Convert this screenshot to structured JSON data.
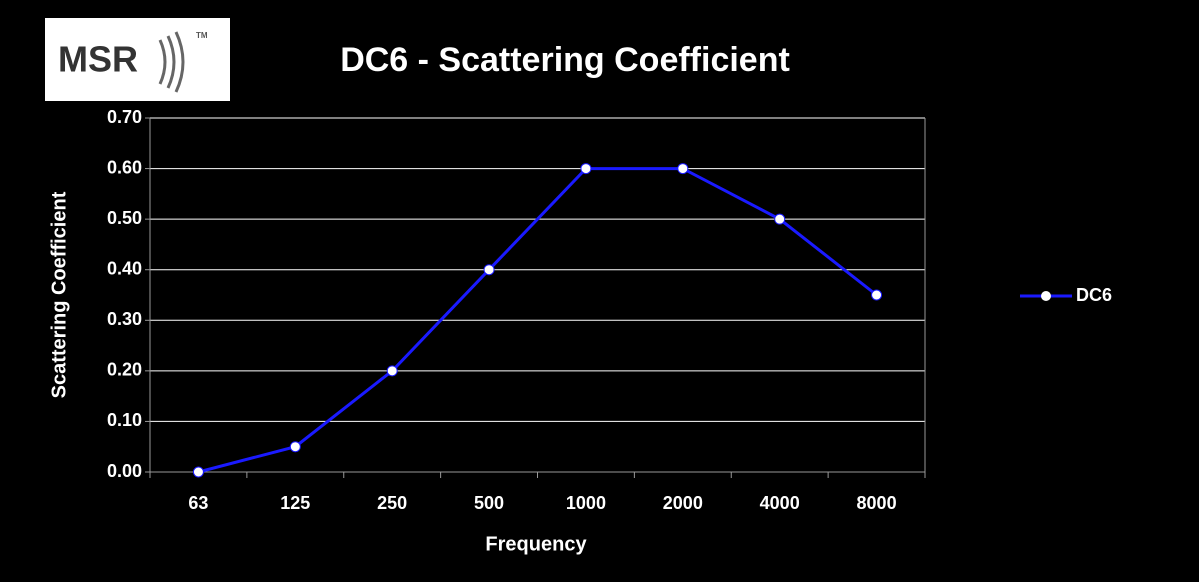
{
  "chart_data": {
    "type": "line",
    "title": "DC6 - Scattering Coefficient",
    "logo": {
      "text": "MSR",
      "trademark": "TM"
    },
    "x_label": "Frequency",
    "y_label": "Scattering Coefficient",
    "categories": [
      "63",
      "125",
      "250",
      "500",
      "1000",
      "2000",
      "4000",
      "8000"
    ],
    "series": [
      {
        "name": "DC6",
        "color": "#1a1aff",
        "marker_color": "#ffffff",
        "values": [
          0,
          0.05,
          0.2,
          0.4,
          0.6,
          0.6,
          0.5,
          0.35
        ]
      }
    ],
    "ylim": [
      0,
      0.7
    ],
    "yticks": [
      {
        "value": 0,
        "label": "0.00"
      },
      {
        "value": 0.1,
        "label": "0.10"
      },
      {
        "value": 0.2,
        "label": "0.20"
      },
      {
        "value": 0.3,
        "label": "0.30"
      },
      {
        "value": 0.4,
        "label": "0.40"
      },
      {
        "value": 0.5,
        "label": "0.50"
      },
      {
        "value": 0.6,
        "label": "0.60"
      },
      {
        "value": 0.7,
        "label": "0.70"
      }
    ],
    "grid": true,
    "legend": "right"
  }
}
